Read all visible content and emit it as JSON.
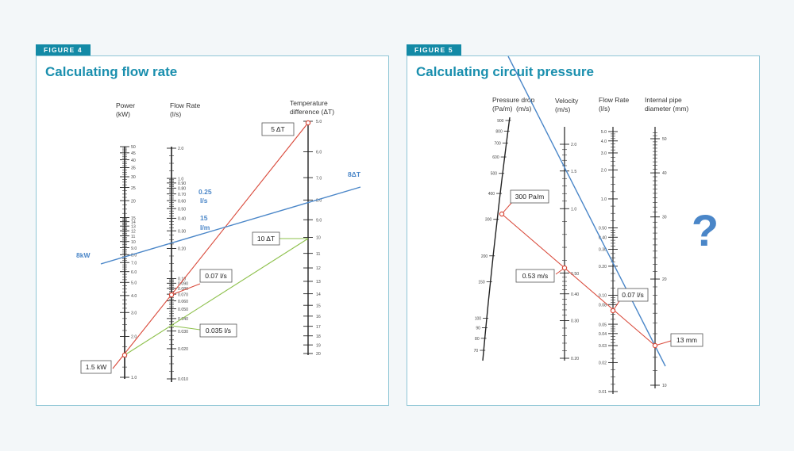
{
  "figure4": {
    "tag": "FIGURE 4",
    "title": "Calculating flow rate",
    "power_axis": {
      "label1": "Power",
      "label2": "(kW)",
      "ticks": [
        "50",
        "45",
        "40",
        "35",
        "30",
        "25",
        "20",
        "15",
        "14",
        "13",
        "12",
        "11",
        "10",
        "9.0",
        "8.0",
        "7.0",
        "6.0",
        "5.0",
        "4.0",
        "3.0",
        "2.0",
        "1.0"
      ]
    },
    "flow_axis": {
      "label1": "Flow Rate",
      "label2": "(l/s)",
      "ticks": [
        "2.0",
        "1.0",
        "0.90",
        "0.80",
        "0.70",
        "0.60",
        "0.50",
        "0.40",
        "0.30",
        "0.20",
        "0.10",
        "0.090",
        "0.080",
        "0.070",
        "0.060",
        "0.050",
        "0.040",
        "0.030",
        "0.020",
        "0.010"
      ]
    },
    "temp_axis": {
      "label1": "Temperature",
      "label2": "difference (ΔT)",
      "ticks": [
        "5.0",
        "6.0",
        "7.0",
        "8.0",
        "9.0",
        "10",
        "11",
        "12",
        "13",
        "14",
        "15",
        "16",
        "17",
        "18",
        "19",
        "20"
      ]
    },
    "callouts": {
      "five_dt": "5 ΔT",
      "ten_dt": "10 ΔT",
      "flow_007": "0.07 l/s",
      "flow_0035": "0.035 l/s",
      "power_15": "1.5 kW"
    },
    "blue_labels": {
      "eight_kw": "8kW",
      "eight_dt": "8ΔT",
      "flow_025": "0.25",
      "flow_025_unit": "l/s",
      "flow_15": "15",
      "flow_15_unit": "l/m"
    },
    "colors": {
      "red": "#d9493a",
      "green": "#8dc04b",
      "blue": "#4a86c8"
    }
  },
  "figure5": {
    "tag": "FIGURE 5",
    "title": "Calculating circuit pressure",
    "pressure_axis": {
      "label1": "Pressure drop",
      "label2": "(Pa/m)",
      "ticks": [
        "900",
        "800",
        "700",
        "600",
        "500",
        "400",
        "300",
        "200",
        "150",
        "100",
        "90",
        "80",
        "70"
      ]
    },
    "velocity_axis": {
      "label1": "Velocity",
      "label2": "(m/s)",
      "units_inline": "(m/s)",
      "ticks": [
        "2.0",
        "1.5",
        "1.0",
        "0.50",
        "0.40",
        "0.30",
        "0.20"
      ]
    },
    "flow_axis": {
      "label1": "Flow Rate",
      "label2": "(l/s)",
      "ticks": [
        "5.0",
        "4.0",
        "3.0",
        "2.0",
        "1.0",
        "0.50",
        "0.40",
        "0.30",
        "0.20",
        "0.10",
        "0.08",
        "0.05",
        "0.04",
        "0.03",
        "0.02",
        "0.01"
      ]
    },
    "pipe_axis": {
      "label1": "Internal pipe",
      "label2": "diameter (mm)",
      "ticks": [
        "50",
        "40",
        "30",
        "20",
        "10"
      ]
    },
    "callouts": {
      "pa_300": "300 Pa/m",
      "ms_053": "0.53 m/s",
      "flow_007": "0.07 l/s",
      "mm_13": "13 mm"
    },
    "question": "?",
    "colors": {
      "red": "#d9493a",
      "blue": "#4a86c8",
      "question": "#4a86c8"
    }
  }
}
